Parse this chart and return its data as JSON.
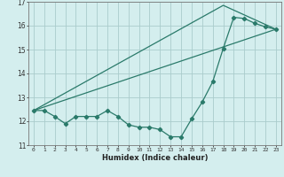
{
  "xlabel": "Humidex (Indice chaleur)",
  "xlim": [
    -0.5,
    23.5
  ],
  "ylim": [
    11,
    17
  ],
  "xticks": [
    0,
    1,
    2,
    3,
    4,
    5,
    6,
    7,
    8,
    9,
    10,
    11,
    12,
    13,
    14,
    15,
    16,
    17,
    18,
    19,
    20,
    21,
    22,
    23
  ],
  "yticks": [
    11,
    12,
    13,
    14,
    15,
    16,
    17
  ],
  "color": "#2a7a6a",
  "bg_color": "#d4eeee",
  "grid_color": "#aacccc",
  "line1_x": [
    0,
    1,
    2,
    3,
    4,
    5,
    6,
    7,
    8,
    9,
    10,
    11,
    12,
    13,
    14,
    15,
    16,
    17,
    18,
    19,
    20,
    21,
    22,
    23
  ],
  "line1_y": [
    12.45,
    12.45,
    12.2,
    11.9,
    12.2,
    12.2,
    12.2,
    12.45,
    12.2,
    11.85,
    11.75,
    11.75,
    11.65,
    11.35,
    11.35,
    12.1,
    12.8,
    13.65,
    15.05,
    16.35,
    16.3,
    16.1,
    15.95,
    15.85
  ],
  "line2_x": [
    0,
    23
  ],
  "line2_y": [
    12.45,
    15.85
  ],
  "line3_x": [
    0,
    18,
    23
  ],
  "line3_y": [
    12.45,
    16.85,
    15.85
  ]
}
